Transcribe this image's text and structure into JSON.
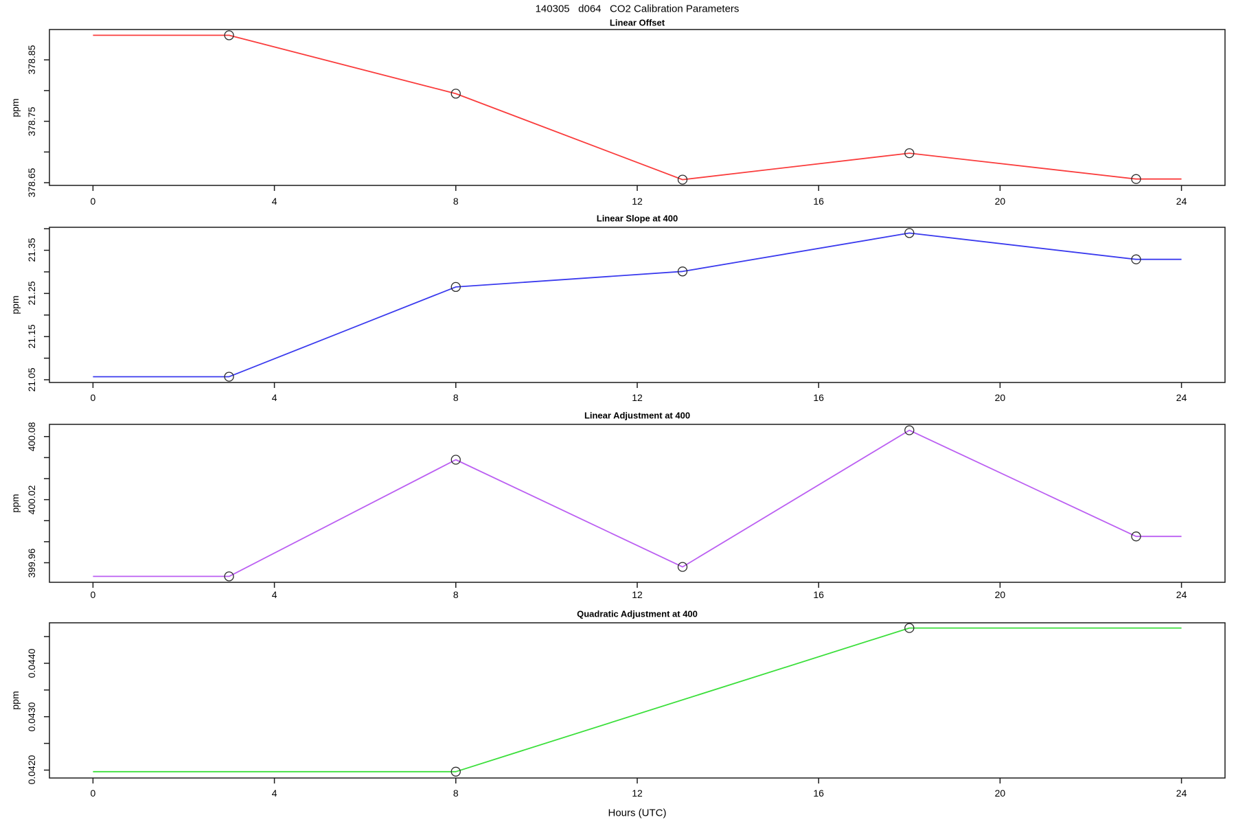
{
  "page_title": "140305   d064   CO2 Calibration Parameters",
  "x_axis_label": "Hours (UTC)",
  "y_axis_label": "ppm",
  "x_tick_labels": [
    "0",
    "4",
    "8",
    "12",
    "16",
    "20",
    "24"
  ],
  "chart_data": [
    {
      "type": "line",
      "title": "Linear Offset",
      "series_color": "#fa3c3c",
      "color_name": "red",
      "ylabel": "ppm",
      "xlim": [
        -0.96,
        24.96
      ],
      "xticks": [
        0,
        4,
        8,
        12,
        16,
        20,
        24
      ],
      "x": [
        0,
        3,
        8,
        13,
        18,
        23,
        24
      ],
      "y": [
        378.89,
        378.89,
        378.795,
        378.655,
        378.698,
        378.656,
        378.656
      ],
      "marker_x": [
        3,
        8,
        13,
        18,
        23
      ],
      "ylim": [
        378.6456,
        378.8994
      ],
      "yticks": [
        {
          "v": 378.65,
          "label": "378.65"
        },
        {
          "v": 378.7,
          "label": ""
        },
        {
          "v": 378.75,
          "label": "378.75"
        },
        {
          "v": 378.8,
          "label": ""
        },
        {
          "v": 378.85,
          "label": "378.85"
        }
      ]
    },
    {
      "type": "line",
      "title": "Linear Slope at 400",
      "series_color": "#3a3aee",
      "color_name": "blue",
      "ylabel": "ppm",
      "xlim": [
        -0.96,
        24.96
      ],
      "xticks": [
        0,
        4,
        8,
        12,
        16,
        20,
        24
      ],
      "x": [
        0,
        3,
        8,
        13,
        18,
        23,
        24
      ],
      "y": [
        21.057,
        21.057,
        21.265,
        21.301,
        21.39,
        21.329,
        21.329
      ],
      "marker_x": [
        3,
        8,
        13,
        18,
        23
      ],
      "ylim": [
        21.0437,
        21.4033
      ],
      "yticks": [
        {
          "v": 21.05,
          "label": "21.05"
        },
        {
          "v": 21.1,
          "label": ""
        },
        {
          "v": 21.15,
          "label": "21.15"
        },
        {
          "v": 21.2,
          "label": ""
        },
        {
          "v": 21.25,
          "label": "21.25"
        },
        {
          "v": 21.3,
          "label": ""
        },
        {
          "v": 21.35,
          "label": "21.35"
        },
        {
          "v": 21.4,
          "label": ""
        }
      ]
    },
    {
      "type": "line",
      "title": "Linear Adjustment at 400",
      "series_color": "#bb5ff2",
      "color_name": "purple",
      "ylabel": "ppm",
      "xlim": [
        -0.96,
        24.96
      ],
      "xticks": [
        0,
        4,
        8,
        12,
        16,
        20,
        24
      ],
      "x": [
        0,
        3,
        8,
        13,
        18,
        23,
        24
      ],
      "y": [
        399.947,
        399.947,
        400.058,
        399.956,
        400.086,
        399.985,
        399.985
      ],
      "marker_x": [
        3,
        8,
        13,
        18,
        23
      ],
      "ylim": [
        399.9414,
        400.0916
      ],
      "yticks": [
        {
          "v": 399.96,
          "label": "399.96"
        },
        {
          "v": 399.98,
          "label": ""
        },
        {
          "v": 400.0,
          "label": ""
        },
        {
          "v": 400.02,
          "label": "400.02"
        },
        {
          "v": 400.04,
          "label": ""
        },
        {
          "v": 400.06,
          "label": ""
        },
        {
          "v": 400.08,
          "label": "400.08"
        }
      ]
    },
    {
      "type": "line",
      "title": "Quadratic Adjustment at 400",
      "series_color": "#3bdf3b",
      "color_name": "green",
      "ylabel": "ppm",
      "xlim": [
        -0.96,
        24.96
      ],
      "xticks": [
        0,
        4,
        8,
        12,
        16,
        20,
        24
      ],
      "x": [
        0,
        8,
        18,
        24
      ],
      "y": [
        0.04197,
        0.04197,
        0.04466,
        0.04466
      ],
      "marker_x": [
        8,
        18
      ],
      "ylim": [
        0.041852,
        0.044758
      ],
      "yticks": [
        {
          "v": 0.042,
          "label": "0.0420"
        },
        {
          "v": 0.0425,
          "label": ""
        },
        {
          "v": 0.043,
          "label": "0.0430"
        },
        {
          "v": 0.0435,
          "label": ""
        },
        {
          "v": 0.044,
          "label": "0.0440"
        },
        {
          "v": 0.0445,
          "label": ""
        }
      ]
    }
  ]
}
